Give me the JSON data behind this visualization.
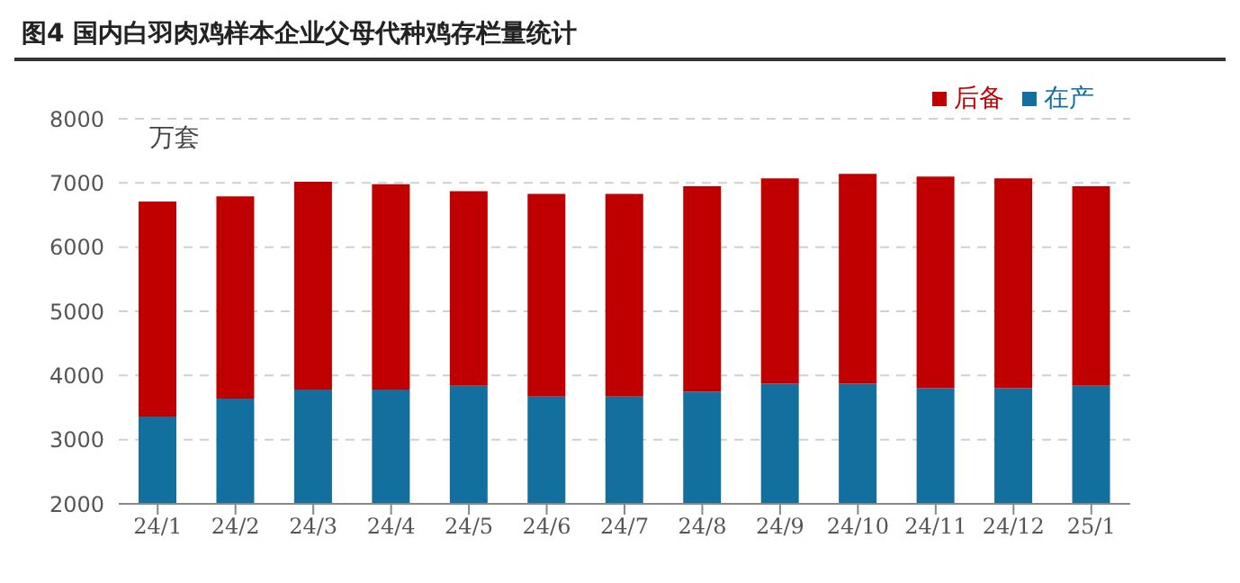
{
  "chart_data": {
    "type": "bar",
    "title": "图4  国内白羽肉鸡样本企业父母代种鸡存栏量统计",
    "ylabel": "万套",
    "stacked": true,
    "categories": [
      "24/1",
      "24/2",
      "24/3",
      "24/4",
      "24/5",
      "24/6",
      "24/7",
      "24/8",
      "24/9",
      "24/10",
      "24/11",
      "24/12",
      "25/1"
    ],
    "series": [
      {
        "name": "在产",
        "color": "#136f9e",
        "values": [
          3360,
          3640,
          3780,
          3780,
          3840,
          3670,
          3670,
          3750,
          3870,
          3870,
          3800,
          3800,
          3840
        ]
      },
      {
        "name": "后备",
        "color": "#c00000",
        "values": [
          3350,
          3150,
          3240,
          3200,
          3030,
          3160,
          3160,
          3200,
          3200,
          3270,
          3300,
          3270,
          3110
        ]
      }
    ],
    "ylim": [
      2000,
      8000
    ],
    "yticks": [
      2000,
      3000,
      4000,
      5000,
      6000,
      7000,
      8000
    ],
    "grid": "y",
    "legend": "top right"
  }
}
